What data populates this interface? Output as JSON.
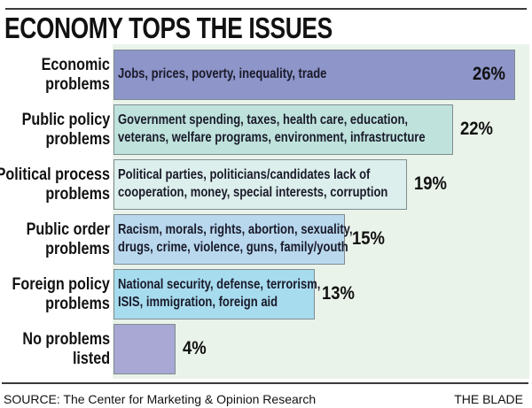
{
  "chart_data": {
    "type": "bar",
    "orientation": "horizontal",
    "title": "ECONOMY TOPS THE ISSUES",
    "categories": [
      "Economic problems",
      "Public policy problems",
      "Political process problems",
      "Public order problems",
      "Foreign policy problems",
      "No problems listed"
    ],
    "category_lines": [
      [
        "Economic",
        "problems"
      ],
      [
        "Public policy",
        "problems"
      ],
      [
        "Political process",
        "problems"
      ],
      [
        "Public order",
        "problems"
      ],
      [
        "Foreign policy",
        "problems"
      ],
      [
        "No problems",
        "listed"
      ]
    ],
    "descriptions": [
      [
        "Jobs, prices, poverty, inequality, trade"
      ],
      [
        "Government spending, taxes, health care, education,",
        "veterans, welfare programs, environment, infrastructure"
      ],
      [
        "Political parties, politicians/candidates lack of",
        "cooperation, money, special interests, corruption"
      ],
      [
        "Racism, morals, rights, abortion, sexuality,",
        "drugs, crime, violence, guns, family/youth"
      ],
      [
        "National security, defense, terrorism,",
        "ISIS, immigration, foreign aid"
      ],
      []
    ],
    "values": [
      26,
      22,
      19,
      15,
      13,
      4
    ],
    "value_labels": [
      "26%",
      "22%",
      "19%",
      "15%",
      "13%",
      "4%"
    ],
    "unit": "%",
    "xlim": [
      0,
      26
    ],
    "colors": [
      "#8d95c9",
      "#bfe3dc",
      "#dcefec",
      "#b9d8ee",
      "#a7dcee",
      "#a9a8d4"
    ],
    "grid": false,
    "xlabel": "",
    "ylabel": ""
  },
  "footer": {
    "source": "SOURCE: The Center for Marketing & Opinion Research",
    "credit": "THE BLADE"
  }
}
